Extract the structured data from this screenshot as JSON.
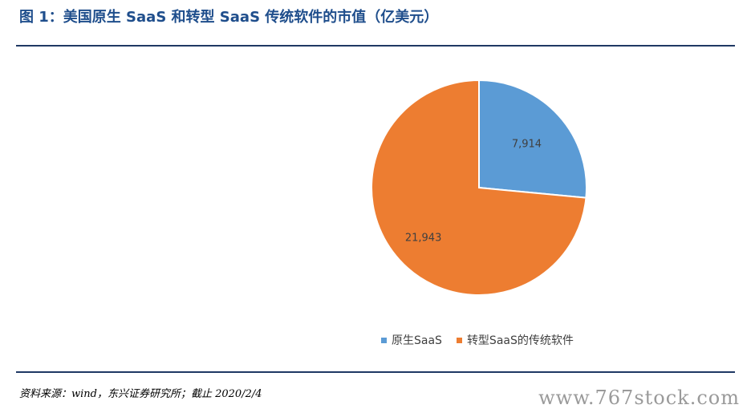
{
  "figure": {
    "title": "图 1：美国原生 SaaS 和转型 SaaS 传统软件的市值（亿美元）",
    "source": "资料来源：wind，东兴证券研究所；截止 2020/2/4",
    "watermark": "www.767stock.com"
  },
  "chart_data": {
    "type": "pie",
    "title": "",
    "slices": [
      {
        "name": "原生SaaS",
        "value": 7914,
        "label": "7,914",
        "color": "#5b9bd5"
      },
      {
        "name": "转型SaaS的传统软件",
        "value": 21943,
        "label": "21,943",
        "color": "#ed7d31"
      }
    ],
    "start": "12 o'clock",
    "direction": "clockwise",
    "legend_position": "bottom"
  }
}
